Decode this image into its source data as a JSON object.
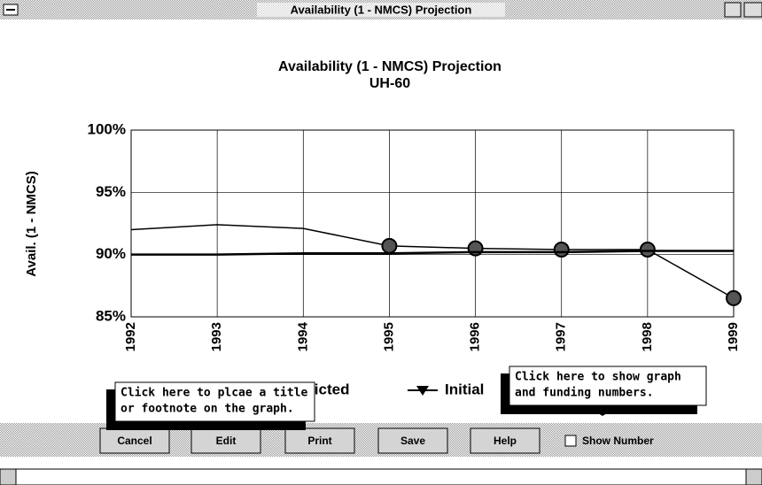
{
  "window": {
    "title": "Availability (1 - NMCS) Projection"
  },
  "chart_data": {
    "type": "line",
    "title": "Availability (1 - NMCS) Projection",
    "subtitle": "UH-60",
    "y_label": "Avail. (1 - NMCS)",
    "categories": [
      "1992",
      "1993",
      "1994",
      "1995",
      "1996",
      "1997",
      "1998",
      "1999"
    ],
    "series": [
      {
        "name": "Predicted",
        "color": "#000000",
        "values": [
          92.0,
          92.4,
          92.1,
          90.7,
          90.5,
          90.4,
          90.4,
          86.5
        ]
      },
      {
        "name": "Initial",
        "color": "#000000",
        "values": [
          90.0,
          90.0,
          90.1,
          90.1,
          90.2,
          90.2,
          90.3,
          90.3
        ]
      }
    ],
    "ylim": [
      85,
      100
    ],
    "yticks": [
      {
        "value": 85,
        "label": "85%"
      },
      {
        "value": 90,
        "label": "90%"
      },
      {
        "value": 95,
        "label": "95%"
      },
      {
        "value": 100,
        "label": "100%"
      }
    ],
    "grid": true
  },
  "tooltips": [
    {
      "lines": [
        "Click here to plcae a title",
        "or footnote on the graph."
      ]
    },
    {
      "lines": [
        "Click here to show graph",
        "and funding numbers."
      ]
    }
  ],
  "buttons": [
    "Cancel",
    "Edit",
    "Print",
    "Save",
    "Help"
  ],
  "checkbox": "Show Number"
}
